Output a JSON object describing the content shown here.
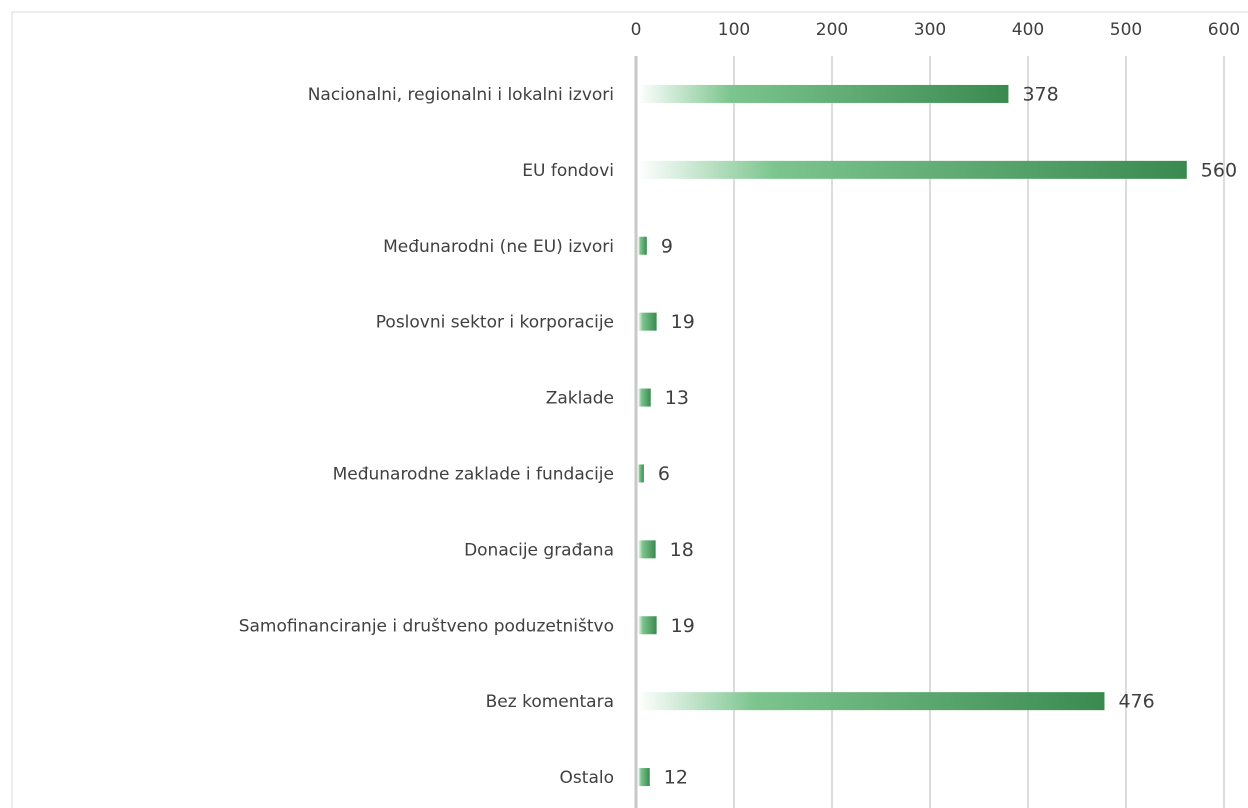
{
  "chart_data": {
    "type": "barh",
    "categories": [
      "Nacionalni, regionalni i lokalni izvori",
      "EU fondovi",
      "Međunarodni (ne EU) izvori",
      "Poslovni sektor i korporacije",
      "Zaklade",
      "Međunarodne zaklade i fundacije",
      "Donacije građana",
      "Samofinanciranje i društveno poduzetništvo",
      "Bez komentara",
      "Ostalo"
    ],
    "values": [
      378,
      560,
      9,
      19,
      13,
      6,
      18,
      19,
      476,
      12
    ],
    "color": "#3a8a50",
    "xlim": [
      0,
      600
    ],
    "xticks": [
      0,
      100,
      200,
      300,
      400,
      500,
      600
    ],
    "grid": true
  }
}
